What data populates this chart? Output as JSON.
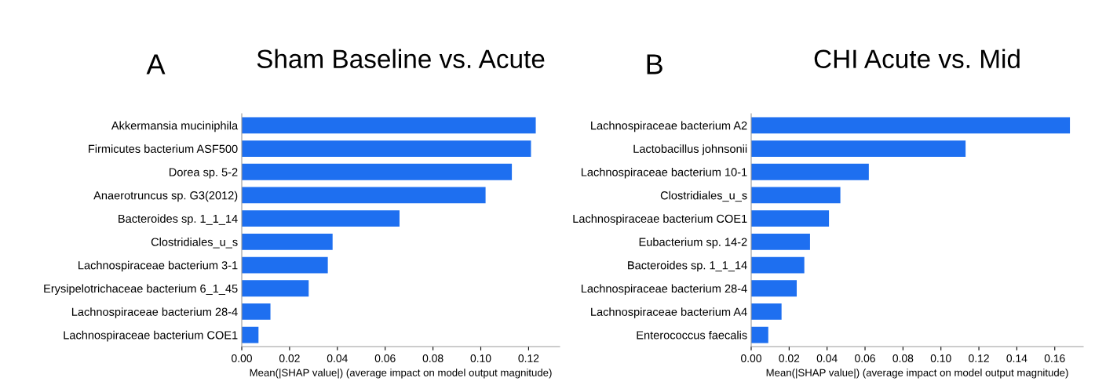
{
  "chart_data": [
    {
      "type": "bar",
      "orientation": "horizontal",
      "title": "Sham Baseline vs. Acute",
      "annotations": [
        "A"
      ],
      "xlabel": "Mean(|SHAP value|) (average impact on model output magnitude)",
      "categories": [
        "Akkermansia muciniphila",
        "Firmicutes bacterium ASF500",
        "Dorea sp. 5-2",
        "Anaerotruncus sp. G3(2012)",
        "Bacteroides sp. 1_1_14",
        "Clostridiales_u_s",
        "Lachnospiraceae bacterium 3-1",
        "Erysipelotrichaceae bacterium 6_1_45",
        "Lachnospiraceae bacterium 28-4",
        "Lachnospiraceae bacterium COE1"
      ],
      "values": [
        0.123,
        0.121,
        0.113,
        0.102,
        0.066,
        0.038,
        0.036,
        0.028,
        0.012,
        0.007
      ],
      "color": "#1e6ff0",
      "xlim": [
        0,
        0.133
      ],
      "xticks": [
        {
          "value": 0,
          "label": "0.00"
        },
        {
          "value": 0.02,
          "label": "0.02"
        },
        {
          "value": 0.04,
          "label": "0.04"
        },
        {
          "value": 0.06,
          "label": "0.06"
        },
        {
          "value": 0.08,
          "label": "0.08"
        },
        {
          "value": 0.1,
          "label": "0.10"
        },
        {
          "value": 0.12,
          "label": "0.12"
        }
      ],
      "grid": false,
      "legend": false
    },
    {
      "type": "bar",
      "orientation": "horizontal",
      "title": "CHI Acute vs. Mid",
      "annotations": [
        "B"
      ],
      "xlabel": "Mean(|SHAP value|) (average impact on model output magnitude)",
      "categories": [
        "Lachnospiraceae bacterium A2",
        "Lactobacillus johnsonii",
        "Lachnospiraceae bacterium 10-1",
        "Clostridiales_u_s",
        "Lachnospiraceae bacterium COE1",
        "Eubacterium sp. 14-2",
        "Bacteroides sp. 1_1_14",
        "Lachnospiraceae bacterium 28-4",
        "Lachnospiraceae bacterium A4",
        "Enterococcus faecalis"
      ],
      "values": [
        0.168,
        0.113,
        0.062,
        0.047,
        0.041,
        0.031,
        0.028,
        0.024,
        0.016,
        0.009
      ],
      "color": "#1e6ff0",
      "xlim": [
        0,
        0.175
      ],
      "xticks": [
        {
          "value": 0,
          "label": "0.00"
        },
        {
          "value": 0.02,
          "label": "0.02"
        },
        {
          "value": 0.04,
          "label": "0.04"
        },
        {
          "value": 0.06,
          "label": "0.06"
        },
        {
          "value": 0.08,
          "label": "0.08"
        },
        {
          "value": 0.1,
          "label": "0.10"
        },
        {
          "value": 0.12,
          "label": "0.12"
        },
        {
          "value": 0.14,
          "label": "0.14"
        },
        {
          "value": 0.16,
          "label": "0.16"
        }
      ],
      "grid": false,
      "legend": false
    }
  ]
}
